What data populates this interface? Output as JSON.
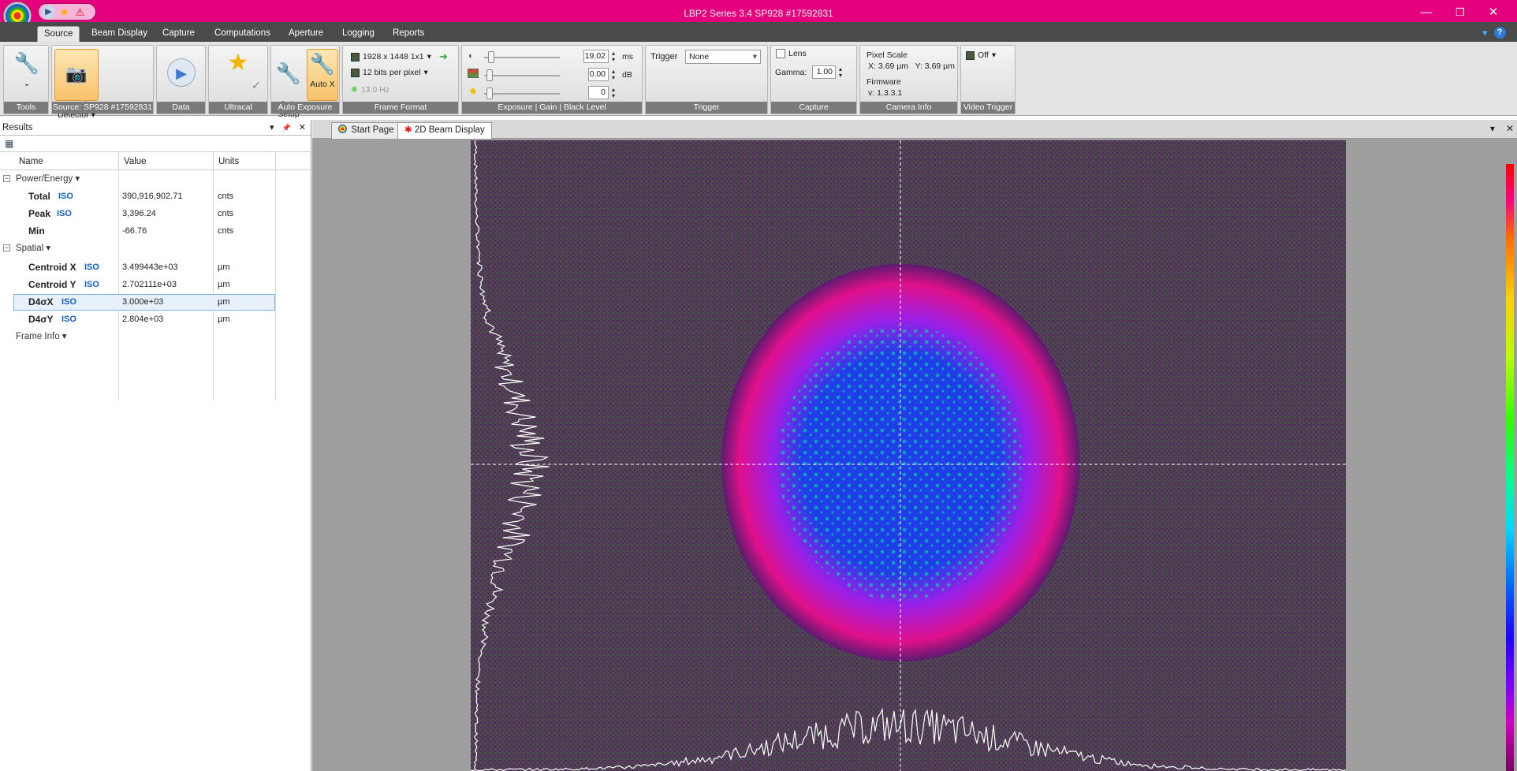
{
  "app": {
    "title": "LBP2 Series 3.4 SP928 #17592831"
  },
  "window": {
    "min": "—",
    "max": "❐",
    "close": "✕"
  },
  "qat": {
    "play": "▶",
    "star": "★",
    "warn": "⚠"
  },
  "tabs": [
    "Source",
    "Beam Display",
    "Capture",
    "Computations",
    "Aperture",
    "Logging",
    "Reports"
  ],
  "help": {
    "tip": "▾",
    "help": "?"
  },
  "ribbon": {
    "tools": {
      "label": "Tools",
      "icon_caret": "⌄"
    },
    "source": {
      "button": "Local\nDetector ▾",
      "label": "Source: SP928 #17592831"
    },
    "data": {
      "label": "Data"
    },
    "ultracal": {
      "label": "Ultracal",
      "check": "✓"
    },
    "autoexp": {
      "auto_setup": "Auto\nSetup",
      "auto_x": "Auto X",
      "label": "Auto Exposure"
    },
    "frame": {
      "resolution": "1928 x 1448 1x1",
      "bits": "12 bits per pixel",
      "rate": "13.0 Hz",
      "label": "Frame Format"
    },
    "exposure": {
      "exposure_value": "19.02",
      "exposure_unit": "ms",
      "gain_value": "0.00",
      "gain_unit": "dB",
      "black_value": "0",
      "label": "Exposure | Gain | Black Level"
    },
    "trigger": {
      "caption": "Trigger",
      "value": "None",
      "label": "Trigger"
    },
    "capture": {
      "lens": "Lens",
      "gamma_label": "Gamma:",
      "gamma_value": "1.00",
      "label": "Capture"
    },
    "camera": {
      "pixel_scale": "Pixel Scale",
      "xy": "X: 3.69 µm   Y: 3.69 µm",
      "firmware": "Firmware",
      "version": "v: 1.3.3.1",
      "label": "Camera Info"
    },
    "video": {
      "value": "Off",
      "label": "Video Trigger"
    }
  },
  "results": {
    "title": "Results",
    "panel_btns": [
      "▾",
      "📌",
      "✕"
    ],
    "columns": [
      "Name",
      "Value",
      "Units"
    ],
    "categories": {
      "power": "Power/Energy ▾",
      "spatial": "Spatial ▾",
      "frame": "Frame Info ▾"
    },
    "power_rows": [
      {
        "name": "Total",
        "iso": "ISO",
        "value": "390,916,902.71",
        "unit": "cnts"
      },
      {
        "name": "Peak",
        "iso": "ISO",
        "value": "3,396.24",
        "unit": "cnts"
      },
      {
        "name": "Min",
        "iso": "",
        "value": "-66.76",
        "unit": "cnts"
      }
    ],
    "spatial_rows": [
      {
        "name": "Centroid X",
        "iso": "ISO",
        "value": "3.499443e+03",
        "unit": "µm"
      },
      {
        "name": "Centroid Y",
        "iso": "ISO",
        "value": "2.702111e+03",
        "unit": "µm"
      },
      {
        "name": "D4σX",
        "iso": "ISO",
        "value": "3.000e+03",
        "unit": "µm"
      },
      {
        "name": "D4σY",
        "iso": "ISO",
        "value": "2.804e+03",
        "unit": "µm"
      }
    ]
  },
  "doc": {
    "tabs": [
      "Start Page",
      "2D Beam Display"
    ],
    "ctrl": [
      "▾",
      "✕"
    ]
  },
  "beam": {
    "background": "#4a4a4a",
    "noise": "#5c1a70",
    "outer": "#e0108a",
    "mid": "#9a20e8",
    "core": "#1f3ee8",
    "hot": "#00e6a0"
  }
}
